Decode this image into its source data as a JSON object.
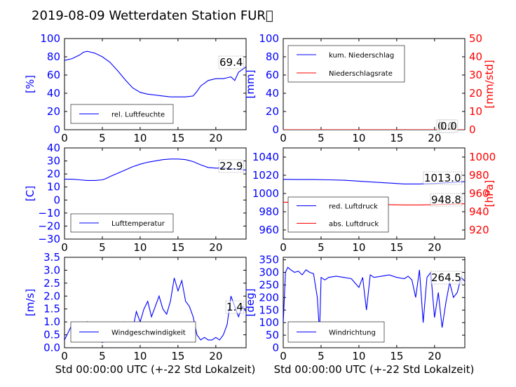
{
  "title": "2019-08-09 Wetterdaten Station FUR\u0000",
  "colors": {
    "blue": "#0000ff",
    "red": "#ff0000",
    "black": "#000000"
  },
  "chart_data": [
    {
      "id": "humidity",
      "type": "line",
      "xlim": [
        0,
        24
      ],
      "ylim": [
        0,
        100
      ],
      "xticks": [
        "0",
        "5",
        "10",
        "15",
        "20"
      ],
      "yticks": [
        "0",
        "20",
        "40",
        "60",
        "80",
        "100"
      ],
      "ylabel": "[%]",
      "annotation": "69.4",
      "legend": [
        "rel. Luftfeuchte"
      ],
      "series": [
        {
          "name": "rel. Luftfeuchte",
          "color": "#0000ff",
          "x": [
            0,
            1,
            2,
            2.5,
            3,
            3.5,
            4,
            5,
            6,
            7,
            8,
            9,
            10,
            11,
            12,
            13,
            14,
            15,
            16,
            17,
            17.5,
            18,
            19,
            20,
            21,
            21.5,
            22,
            22.5,
            23,
            23.5,
            24
          ],
          "y": [
            76,
            78,
            82,
            85,
            86,
            85,
            84,
            80,
            74,
            65,
            55,
            46,
            41,
            39,
            38,
            37,
            36,
            36,
            36,
            37,
            42,
            48,
            54,
            56,
            56,
            57,
            58,
            54,
            63,
            66,
            69
          ]
        }
      ]
    },
    {
      "id": "precip",
      "type": "line",
      "xlim": [
        0,
        24
      ],
      "ylim": [
        0,
        100
      ],
      "ylim_right": [
        0,
        50
      ],
      "xticks": [
        "0",
        "5",
        "10",
        "15",
        "20"
      ],
      "yticks": [
        "0",
        "20",
        "40",
        "60",
        "80",
        "100"
      ],
      "yticks_right": [
        "0",
        "10",
        "20",
        "30",
        "40",
        "50"
      ],
      "ylabel": "[mm]",
      "ylabel_right": "[mm/std]",
      "annotation": "0.0",
      "annotation2": "0.0",
      "legend": [
        "kum. Niederschlag",
        "Niederschlagsrate"
      ],
      "series": [
        {
          "name": "kum. Niederschlag",
          "color": "#0000ff",
          "x": [
            0,
            24
          ],
          "y": [
            0,
            0
          ]
        },
        {
          "name": "Niederschlagsrate",
          "color": "#ff0000",
          "x": [
            0,
            24
          ],
          "y": [
            0,
            0
          ]
        }
      ]
    },
    {
      "id": "temperature",
      "type": "line",
      "xlim": [
        0,
        24
      ],
      "ylim": [
        -30,
        40
      ],
      "xticks": [
        "0",
        "5",
        "10",
        "15",
        "20"
      ],
      "yticks": [
        "−30",
        "−20",
        "−10",
        "0",
        "10",
        "20",
        "30",
        "40"
      ],
      "ylabel": "[C]",
      "annotation": "22.9",
      "legend": [
        "Lufttemperatur"
      ],
      "series": [
        {
          "name": "Lufttemperatur",
          "color": "#0000ff",
          "x": [
            0,
            1,
            2,
            3,
            4,
            5,
            5.5,
            6,
            7,
            8,
            9,
            10,
            11,
            12,
            13,
            14,
            15,
            16,
            17,
            18,
            19,
            20,
            21,
            22,
            23,
            24
          ],
          "y": [
            16,
            16,
            15.5,
            15,
            15,
            15.5,
            16.5,
            18,
            20.5,
            23,
            25.5,
            27.5,
            29,
            30,
            31,
            31.5,
            31.5,
            31,
            29.5,
            27,
            25,
            24.5,
            24.5,
            24,
            23.5,
            23
          ]
        }
      ]
    },
    {
      "id": "pressure",
      "type": "line",
      "xlim": [
        0,
        24
      ],
      "ylim": [
        950,
        1050
      ],
      "ylim_right": [
        910,
        1010
      ],
      "xticks": [
        "0",
        "5",
        "10",
        "15",
        "20"
      ],
      "yticks": [
        "960",
        "980",
        "1000",
        "1020",
        "1040"
      ],
      "yticks_right": [
        "920",
        "940",
        "960",
        "980",
        "1000"
      ],
      "ylabel_right": "[hPa]",
      "annotation": "1013.0",
      "annotation2": "948.8",
      "legend": [
        "red. Luftdruck",
        "abs. Luftdruck"
      ],
      "series": [
        {
          "name": "red. Luftdruck",
          "color": "#0000ff",
          "x": [
            0,
            2,
            4,
            6,
            8,
            10,
            12,
            14,
            16,
            18,
            20,
            22,
            24
          ],
          "y": [
            1015.5,
            1015.3,
            1015.3,
            1015,
            1014.5,
            1013.5,
            1012.5,
            1011.5,
            1010.5,
            1010.5,
            1011,
            1012,
            1013
          ]
        },
        {
          "name": "abs. Luftdruck",
          "color": "#ff0000",
          "x": [
            0,
            2,
            4,
            6,
            8,
            10,
            12,
            14,
            16,
            18,
            20,
            22,
            24
          ],
          "y": [
            950.5,
            950.3,
            950,
            949.8,
            949.5,
            948.8,
            948.3,
            947.8,
            947.5,
            947.5,
            947.8,
            948.2,
            948.8
          ]
        }
      ]
    },
    {
      "id": "windspeed",
      "type": "line",
      "xlim": [
        0,
        24
      ],
      "ylim": [
        0,
        3.5
      ],
      "xticks": [
        "0",
        "5",
        "10",
        "15",
        "20"
      ],
      "yticks": [
        "0.0",
        "0.5",
        "1.0",
        "1.5",
        "2.0",
        "2.5",
        "3.0",
        "3.5"
      ],
      "ylabel": "[m/s]",
      "xlabel": "Std 00:00:00 UTC (+-22 Std Lokalzeit)",
      "annotation": "1.4",
      "legend": [
        "Windgeschwindigkeit"
      ],
      "series": [
        {
          "name": "Windgeschwindigkeit",
          "color": "#0000ff",
          "x": [
            0,
            0.5,
            1,
            1.5,
            2,
            2.5,
            3,
            3.5,
            4,
            4.5,
            5,
            5.5,
            6,
            6.5,
            7,
            7.5,
            8,
            8.5,
            9,
            9.5,
            10,
            10.5,
            11,
            11.5,
            12,
            12.5,
            13,
            13.5,
            14,
            14.5,
            15,
            15.5,
            16,
            16.5,
            17,
            17.5,
            18,
            18.5,
            19,
            19.5,
            20,
            20.5,
            21,
            21.5,
            22,
            22.5,
            23,
            23.5,
            24
          ],
          "y": [
            0.3,
            0.6,
            0.9,
            0.5,
            0.8,
            0.6,
            1.0,
            0.7,
            0.5,
            0.4,
            0.2,
            0.4,
            0.6,
            0.5,
            0.8,
            0.9,
            1.0,
            0.8,
            0.7,
            1.4,
            1.0,
            1.5,
            1.8,
            1.2,
            1.6,
            2.0,
            1.5,
            1.3,
            1.8,
            2.7,
            2.2,
            2.6,
            1.8,
            1.6,
            1.2,
            0.5,
            0.3,
            0.4,
            0.3,
            0.3,
            0.4,
            0.3,
            0.5,
            0.9,
            2.0,
            1.6,
            1.2,
            1.6,
            1.4
          ]
        }
      ]
    },
    {
      "id": "winddir",
      "type": "line",
      "xlim": [
        0,
        24
      ],
      "ylim": [
        0,
        360
      ],
      "xticks": [
        "0",
        "5",
        "10",
        "15",
        "20"
      ],
      "yticks": [
        "0",
        "50",
        "100",
        "150",
        "200",
        "250",
        "300",
        "350"
      ],
      "ylabel": "[deg]",
      "xlabel": "Std 00:00:00 UTC (+-22 Std Lokalzeit)",
      "annotation": "264.5",
      "legend": [
        "Windrichtung"
      ],
      "series": [
        {
          "name": "Windrichtung",
          "color": "#0000ff",
          "x": [
            0,
            0.3,
            0.6,
            1,
            1.5,
            2,
            2.5,
            3,
            3.5,
            4,
            4.5,
            4.8,
            5,
            5.5,
            6,
            7,
            8,
            9,
            10,
            10.5,
            11,
            11.5,
            12,
            13,
            14,
            15,
            16,
            16.5,
            17,
            17.5,
            18,
            18.5,
            19,
            19.5,
            20,
            20.5,
            21,
            21.5,
            22,
            22.5,
            23,
            23.5,
            24
          ],
          "y": [
            100,
            300,
            320,
            310,
            300,
            305,
            290,
            310,
            300,
            295,
            200,
            60,
            280,
            270,
            280,
            285,
            280,
            275,
            240,
            280,
            150,
            290,
            280,
            285,
            290,
            280,
            275,
            285,
            270,
            200,
            310,
            100,
            280,
            300,
            120,
            220,
            80,
            180,
            260,
            200,
            220,
            280,
            265
          ]
        }
      ]
    }
  ]
}
